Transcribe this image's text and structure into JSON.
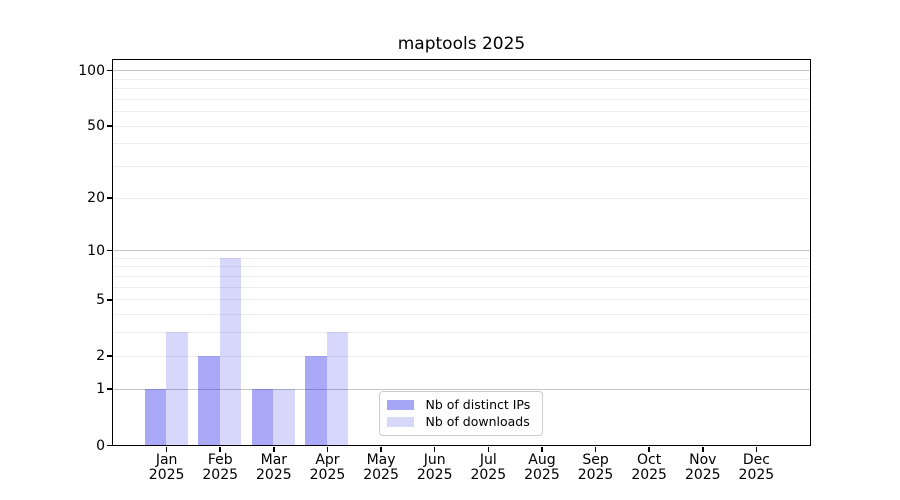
{
  "chart_data": {
    "type": "bar",
    "title": "maptools 2025",
    "categories": [
      "Jan",
      "Feb",
      "Mar",
      "Apr",
      "May",
      "Jun",
      "Jul",
      "Aug",
      "Sep",
      "Oct",
      "Nov",
      "Dec"
    ],
    "category_year": "2025",
    "series": [
      {
        "name": "Nb of distinct IPs",
        "color": "#a6a6f6",
        "fill_rgba": "rgba(8,8,235,0.35)",
        "values": [
          1,
          2,
          1,
          2,
          0,
          0,
          0,
          0,
          0,
          0,
          0,
          0
        ]
      },
      {
        "name": "Nb of downloads",
        "color": "#d8d8fa",
        "fill_rgba": "rgba(8,8,235,0.16)",
        "values": [
          3,
          9,
          1,
          3,
          0,
          0,
          0,
          0,
          0,
          0,
          0,
          0
        ]
      }
    ],
    "y_scale": "log1p",
    "ylim": [
      0,
      114
    ],
    "y_ticks": [
      0,
      1,
      2,
      5,
      10,
      20,
      50,
      100
    ],
    "y_tick_labels": [
      "0",
      "1",
      "2",
      "5",
      "10",
      "20",
      "50",
      "100"
    ],
    "y_major_gridlines": [
      1,
      10,
      100
    ],
    "y_minor_gridlines": [
      2,
      3,
      4,
      5,
      6,
      7,
      8,
      9,
      20,
      30,
      40,
      50,
      60,
      70,
      80,
      90
    ],
    "xlabel": "",
    "ylabel": "",
    "grid": true,
    "legend_position": "lower center",
    "colors": {
      "major_grid": "#c6c6c6",
      "minor_grid": "#ededed",
      "axis": "#000000",
      "legend_border": "#cccccc",
      "background": "#ffffff",
      "text": "#000000"
    }
  }
}
